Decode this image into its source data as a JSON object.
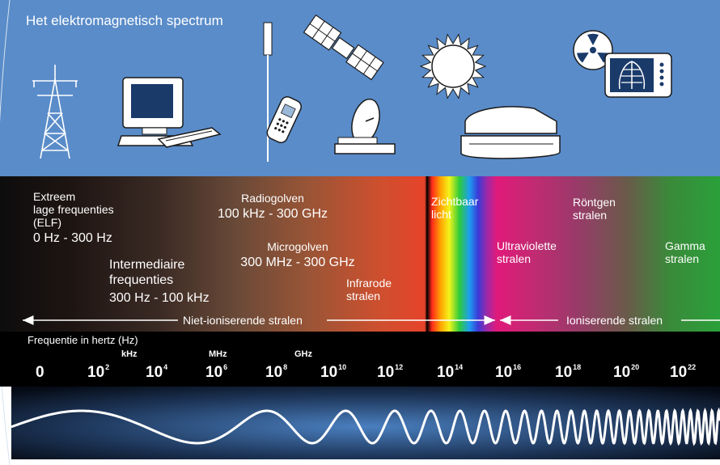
{
  "title": "Het elektromagnetisch spectrum",
  "bands": {
    "elf": [
      "Extreem",
      "lage frequenties",
      "(ELF)",
      "0 Hz - 300 Hz"
    ],
    "intermediate": [
      "Intermediaire",
      "frequenties",
      "300 Hz - 100 kHz"
    ],
    "radio": [
      "Radiogolven",
      "100 kHz - 300 GHz"
    ],
    "microwave": [
      "Microgolven",
      "300 MHz - 300 GHz"
    ],
    "infrared": [
      "Infrarode",
      "stralen"
    ],
    "visible": [
      "Zichtbaar",
      "licht"
    ],
    "uv": [
      "Ultraviolette",
      "stralen"
    ],
    "xray": [
      "Röntgen",
      "stralen"
    ],
    "gamma": [
      "Gamma",
      "stralen"
    ]
  },
  "ranges": {
    "non_ionizing": "Niet-ioniserende stralen",
    "ionizing": "Ioniserende stralen"
  },
  "frequency_axis": {
    "title": "Frequentie in hertz (Hz)",
    "units": {
      "khz": "kHz",
      "mhz": "MHz",
      "ghz": "GHz"
    },
    "ticks": [
      {
        "base": "0",
        "exp": ""
      },
      {
        "base": "10",
        "exp": "2"
      },
      {
        "base": "10",
        "exp": "4"
      },
      {
        "base": "10",
        "exp": "6"
      },
      {
        "base": "10",
        "exp": "8"
      },
      {
        "base": "10",
        "exp": "10"
      },
      {
        "base": "10",
        "exp": "12"
      },
      {
        "base": "10",
        "exp": "14"
      },
      {
        "base": "10",
        "exp": "16"
      },
      {
        "base": "10",
        "exp": "18"
      },
      {
        "base": "10",
        "exp": "20"
      },
      {
        "base": "10",
        "exp": "22"
      }
    ]
  },
  "icons": [
    "power-pylon-icon",
    "computer-icon",
    "antenna-icon",
    "mobile-phone-icon",
    "satellite-icon",
    "satellite-dish-icon",
    "sun-icon",
    "tanning-bed-icon",
    "radiation-icon",
    "xray-icon"
  ],
  "colors": {
    "sky": "#5a8cc9",
    "band_dark": "#1a1414",
    "infrared": "#e8452a",
    "uv": "#d81e78",
    "gamma": "#2a9a3a"
  }
}
